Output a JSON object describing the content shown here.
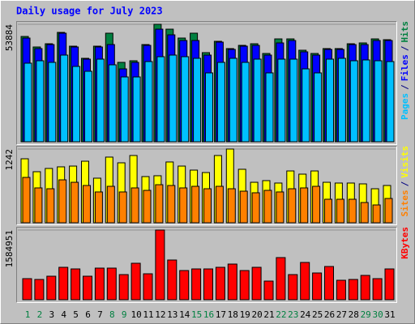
{
  "chart_data": [
    {
      "type": "bar",
      "title": "Daily usage for July 2023",
      "legend_separator": "/",
      "ylim": [
        0,
        53884
      ],
      "yticks": [
        53884
      ],
      "series": [
        {
          "name": "Pages",
          "color": "#00c0ff",
          "values": [
            36050,
            37160,
            36420,
            39760,
            34560,
            32330,
            37900,
            35300,
            29730,
            29730,
            36790,
            39020,
            39760,
            39020,
            38280,
            31590,
            36420,
            38280,
            36420,
            37900,
            31590,
            37900,
            37900,
            33440,
            31590,
            37900,
            38280,
            37160,
            37530,
            37160,
            36790
          ]
        },
        {
          "name": "Files",
          "color": "#0000ff",
          "values": [
            47570,
            42740,
            44590,
            49800,
            43480,
            37900,
            43480,
            44590,
            33440,
            36420,
            44220,
            51650,
            49050,
            46450,
            46450,
            39760,
            45710,
            42360,
            43850,
            44220,
            39760,
            45340,
            46450,
            41250,
            39760,
            42360,
            42360,
            44590,
            44590,
            46450,
            46450
          ]
        },
        {
          "name": "Hits",
          "color": "#008040",
          "values": [
            48310,
            43480,
            44960,
            50170,
            43850,
            38280,
            43850,
            49800,
            36420,
            37160,
            44590,
            53884,
            51650,
            47570,
            49800,
            40880,
            46080,
            42740,
            44220,
            44960,
            40500,
            47190,
            47190,
            41990,
            40500,
            42740,
            42740,
            44960,
            45340,
            47190,
            46820
          ]
        }
      ]
    },
    {
      "type": "bar",
      "legend_separator": "/",
      "ylim": [
        0,
        1242
      ],
      "yticks": [
        1242
      ],
      "series": [
        {
          "name": "Sites",
          "color": "#ff8000",
          "values": [
            764,
            587,
            573,
            723,
            682,
            628,
            519,
            614,
            519,
            587,
            546,
            641,
            628,
            587,
            614,
            573,
            614,
            573,
            532,
            505,
            546,
            519,
            573,
            587,
            614,
            396,
            396,
            396,
            341,
            300,
            409
          ]
        },
        {
          "name": "Visits",
          "color": "#ffff00",
          "values": [
            1078,
            860,
            915,
            942,
            955,
            1037,
            751,
            1106,
            1010,
            1133,
            778,
            792,
            1024,
            955,
            887,
            846,
            1133,
            1242,
            901,
            682,
            710,
            669,
            873,
            819,
            873,
            682,
            669,
            669,
            655,
            573,
            628
          ]
        }
      ]
    },
    {
      "type": "bar",
      "ylim": [
        0,
        1584951
      ],
      "yticks": [
        1584951
      ],
      "categories": [
        "1",
        "2",
        "3",
        "4",
        "5",
        "6",
        "7",
        "8",
        "9",
        "10",
        "11",
        "12",
        "13",
        "14",
        "15",
        "16",
        "17",
        "18",
        "19",
        "20",
        "21",
        "22",
        "23",
        "24",
        "25",
        "26",
        "27",
        "28",
        "29",
        "30",
        "31"
      ],
      "category_colors": [
        "#008040",
        "#008040",
        "#000000",
        "#000000",
        "#000000",
        "#000000",
        "#000000",
        "#008040",
        "#008040",
        "#000000",
        "#000000",
        "#000000",
        "#000000",
        "#000000",
        "#008040",
        "#008040",
        "#000000",
        "#000000",
        "#000000",
        "#000000",
        "#000000",
        "#008040",
        "#008040",
        "#000000",
        "#000000",
        "#000000",
        "#000000",
        "#000000",
        "#008040",
        "#008040",
        "#000000"
      ],
      "series": [
        {
          "name": "KBytes",
          "color": "#ff0000",
          "values": [
            479180,
            460750,
            534470,
            737200,
            700340,
            534470,
            718770,
            718770,
            571330,
            829350,
            589760,
            1584951,
            903070,
            663480,
            700340,
            700340,
            737200,
            810920,
            663480,
            737200,
            423890,
            958360,
            571330,
            847780,
            608190,
            755630,
            442320,
            460750,
            552900,
            479180,
            700340
          ]
        }
      ]
    }
  ]
}
